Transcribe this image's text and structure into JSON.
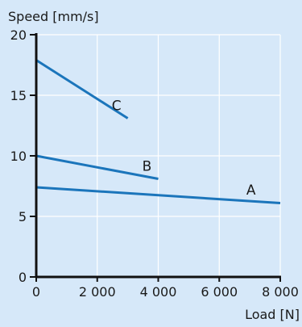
{
  "chart_data": {
    "type": "line",
    "title": "",
    "xlabel": "Load [N]",
    "ylabel": "Speed [mm/s]",
    "xlim": [
      0,
      8000
    ],
    "ylim": [
      0,
      20
    ],
    "x_ticks": [
      0,
      2000,
      4000,
      6000,
      8000
    ],
    "x_tick_labels": [
      "0",
      "2 000",
      "4 000",
      "6 000",
      "8 000"
    ],
    "y_ticks": [
      0,
      5,
      10,
      15,
      20
    ],
    "y_tick_labels": [
      "0",
      "5",
      "10",
      "15",
      "20"
    ],
    "grid": true,
    "legend": "none",
    "series": [
      {
        "name": "A",
        "x": [
          0,
          8000
        ],
        "y": [
          7.4,
          6.1
        ]
      },
      {
        "name": "B",
        "x": [
          0,
          4000
        ],
        "y": [
          10.0,
          8.1
        ]
      },
      {
        "name": "C",
        "x": [
          0,
          3000
        ],
        "y": [
          17.9,
          13.1
        ]
      }
    ]
  },
  "colors": {
    "background": "#d6e8f9",
    "line": "#1b75bb",
    "axis": "#111111",
    "grid": "#ffffff"
  }
}
